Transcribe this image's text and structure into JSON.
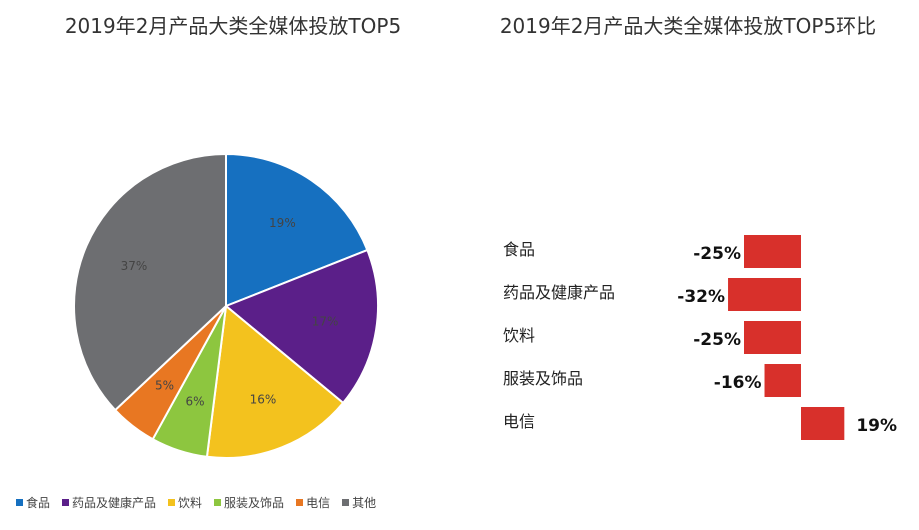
{
  "chart_data": [
    {
      "type": "pie",
      "title": "2019年2月产品大类全媒体投放TOP5",
      "slices": [
        {
          "label": "食品",
          "value": 19,
          "display": "19%",
          "color": "#1670c0"
        },
        {
          "label": "药品及健康产品",
          "value": 17,
          "display": "17%",
          "color": "#5b1f89"
        },
        {
          "label": "饮料",
          "value": 16,
          "display": "16%",
          "color": "#f3c21e"
        },
        {
          "label": "服装及饰品",
          "value": 6,
          "display": "6%",
          "color": "#8dc63f"
        },
        {
          "label": "电信",
          "value": 5,
          "display": "5%",
          "color": "#e87722"
        },
        {
          "label": "其他",
          "value": 37,
          "display": "37%",
          "color": "#6d6e71"
        }
      ],
      "legend_position": "bottom"
    },
    {
      "type": "bar",
      "orientation": "horizontal",
      "title": "2019年2月产品大类全媒体投放TOP5环比",
      "categories": [
        "食品",
        "药品及健康产品",
        "饮料",
        "服装及饰品",
        "电信"
      ],
      "values": [
        -25,
        -32,
        -25,
        -16,
        19
      ],
      "value_labels": [
        "-25%",
        "-32%",
        "-25%",
        "-16%",
        "19%"
      ],
      "bar_color": "#d8302b"
    }
  ]
}
